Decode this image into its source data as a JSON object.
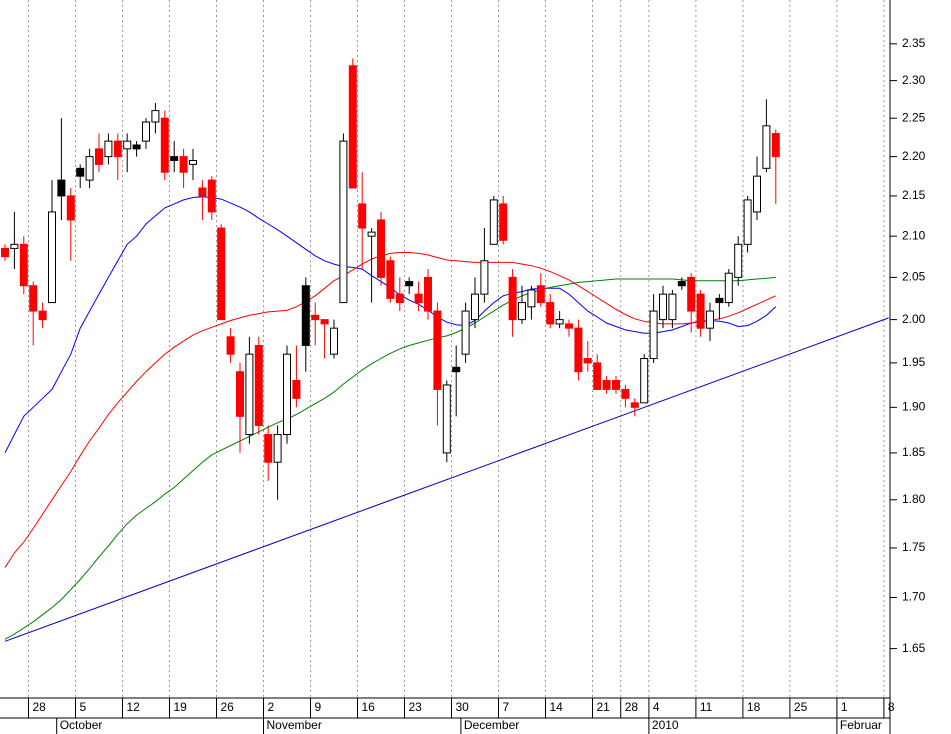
{
  "chart_data": {
    "type": "candlestick",
    "log_scale": true,
    "ylim": [
      1.603,
      2.411
    ],
    "yticks": [
      1.65,
      {
        "value": 1.7,
        "label": "1.70"
      },
      1.75,
      {
        "value": 1.8,
        "label": "1.80"
      },
      1.85,
      {
        "value": 1.9,
        "label": "1.90"
      },
      1.95,
      {
        "value": 2.0,
        "label": "2.00"
      },
      2.05,
      {
        "value": 2.1,
        "label": "2.10"
      },
      2.15,
      {
        "value": 2.2,
        "label": "2.20"
      },
      2.25,
      {
        "value": 2.3,
        "label": "2.30"
      },
      2.35
    ],
    "categories": [
      null,
      null,
      null,
      "28",
      null,
      null,
      null,
      null,
      "5",
      null,
      null,
      null,
      null,
      "12",
      null,
      null,
      null,
      null,
      "19",
      null,
      null,
      null,
      null,
      "26",
      null,
      null,
      null,
      null,
      "2",
      null,
      null,
      null,
      null,
      "9",
      null,
      null,
      null,
      null,
      "16",
      null,
      null,
      null,
      null,
      "23",
      null,
      null,
      null,
      null,
      "30",
      null,
      null,
      null,
      null,
      "7",
      null,
      null,
      null,
      null,
      "14",
      null,
      null,
      null,
      null,
      "21",
      null,
      null,
      "28",
      null,
      null,
      "4",
      null,
      null,
      null,
      null,
      "11",
      null,
      null,
      null,
      null,
      "18",
      null,
      null,
      null,
      null,
      "25",
      null,
      null,
      null,
      null,
      "1",
      null,
      null,
      null,
      null,
      "8"
    ],
    "month_labels": [
      {
        "label": "October",
        "index": 6
      },
      {
        "label": "November",
        "index": 28
      },
      {
        "label": "December",
        "index": 49
      },
      {
        "label": "2010",
        "index": 69
      },
      {
        "label": "Februar",
        "index": 89
      }
    ],
    "open": [
      2.085,
      2.085,
      2.09,
      2.04,
      2.01,
      2.02,
      2.15,
      2.15,
      2.175,
      2.17,
      2.21,
      2.2,
      2.22,
      2.21,
      2.21,
      2.22,
      2.245,
      2.25,
      2.195,
      2.2,
      2.19,
      2.16,
      2.17,
      2.11,
      1.98,
      1.94,
      1.87,
      1.97,
      1.87,
      1.84,
      1.87,
      1.93,
      1.97,
      2.005,
      2.0,
      1.96,
      2.02,
      2.32,
      2.14,
      2.1,
      2.12,
      2.07,
      2.03,
      2.04,
      2.03,
      2.05,
      2.01,
      1.85,
      1.94,
      1.96,
      2.0,
      2.03,
      2.09,
      2.14,
      2.05,
      2.0,
      2.015,
      2.04,
      2.02,
      1.995,
      1.995,
      1.99,
      1.955,
      1.95,
      1.93,
      1.93,
      1.92,
      1.905,
      1.905,
      1.955,
      2.0,
      2.0,
      2.04,
      2.05,
      2.03,
      1.99,
      2.02,
      2.02,
      2.05,
      2.09,
      2.13,
      2.185,
      2.23,
      null,
      null,
      null,
      null,
      null,
      null,
      null,
      null,
      null,
      null,
      null,
      null
    ],
    "high": [
      2.09,
      2.13,
      2.1,
      2.045,
      2.02,
      2.17,
      2.25,
      2.16,
      2.19,
      2.21,
      2.23,
      2.23,
      2.23,
      2.23,
      2.22,
      2.25,
      2.27,
      2.26,
      2.22,
      2.21,
      2.21,
      2.17,
      2.175,
      2.115,
      1.99,
      1.95,
      1.98,
      1.98,
      1.88,
      1.88,
      1.97,
      1.97,
      2.05,
      2.02,
      2.0,
      2.0,
      2.23,
      2.33,
      2.18,
      2.11,
      2.13,
      2.075,
      2.05,
      2.05,
      2.045,
      2.06,
      2.02,
      1.93,
      1.97,
      2.02,
      2.05,
      2.11,
      2.15,
      2.15,
      2.06,
      2.04,
      2.04,
      2.055,
      2.03,
      2.01,
      2.0,
      2.0,
      1.975,
      1.96,
      1.935,
      1.935,
      1.925,
      1.91,
      1.96,
      2.03,
      2.04,
      2.035,
      2.05,
      2.055,
      2.035,
      2.02,
      2.03,
      2.06,
      2.1,
      2.15,
      2.2,
      2.275,
      2.235,
      null,
      null,
      null,
      null,
      null,
      null,
      null,
      null,
      null,
      null,
      null,
      null
    ],
    "low": [
      2.07,
      2.06,
      2.03,
      1.97,
      1.99,
      2.02,
      2.12,
      2.07,
      2.16,
      2.16,
      2.18,
      2.19,
      2.17,
      2.18,
      2.2,
      2.21,
      2.23,
      2.17,
      2.18,
      2.16,
      2.17,
      2.12,
      2.12,
      2.0,
      1.95,
      1.85,
      1.86,
      1.87,
      1.82,
      1.8,
      1.86,
      1.9,
      1.94,
      1.97,
      1.955,
      1.955,
      2.02,
      2.16,
      2.06,
      2.02,
      2.04,
      2.02,
      2.01,
      2.03,
      2.01,
      2.0,
      1.88,
      1.84,
      1.89,
      1.95,
      1.99,
      2.02,
      2.09,
      2.09,
      1.98,
      1.995,
      2.0,
      2.015,
      1.99,
      1.99,
      1.98,
      1.93,
      1.94,
      1.92,
      1.915,
      1.915,
      1.9,
      1.89,
      1.905,
      1.95,
      1.99,
      1.99,
      2.035,
      1.985,
      1.98,
      1.975,
      2.0,
      2.015,
      2.04,
      2.08,
      2.12,
      2.18,
      2.14,
      null,
      null,
      null,
      null,
      null,
      null,
      null,
      null,
      null,
      null,
      null,
      null
    ],
    "close": [
      2.075,
      2.09,
      2.04,
      2.01,
      2.0,
      2.13,
      2.17,
      2.12,
      2.185,
      2.2,
      2.19,
      2.22,
      2.2,
      2.22,
      2.215,
      2.245,
      2.26,
      2.18,
      2.2,
      2.18,
      2.195,
      2.15,
      2.13,
      2.0,
      1.96,
      1.89,
      1.96,
      1.88,
      1.84,
      1.87,
      1.96,
      1.91,
      2.04,
      2.0,
      1.995,
      1.99,
      2.22,
      2.16,
      2.11,
      2.105,
      2.05,
      2.025,
      2.02,
      2.045,
      2.02,
      2.01,
      1.92,
      1.925,
      1.945,
      2.01,
      2.03,
      2.07,
      2.145,
      2.095,
      2.0,
      2.02,
      2.035,
      2.02,
      1.995,
      2.0,
      1.99,
      1.94,
      1.95,
      1.92,
      1.92,
      1.92,
      1.91,
      1.9,
      1.955,
      2.01,
      2.03,
      2.03,
      2.045,
      2.01,
      1.99,
      2.01,
      2.025,
      2.055,
      2.09,
      2.145,
      2.175,
      2.24,
      2.2,
      null,
      null,
      null,
      null,
      null,
      null,
      null,
      null,
      null,
      null,
      null,
      null
    ],
    "candle_colors": [
      "#ff0000",
      "#ffffff",
      "#ff0000",
      "#ff0000",
      "#ff0000",
      "#ffffff",
      "#000000",
      "#ff0000",
      "#000000",
      "#ffffff",
      "#ff0000",
      "#ffffff",
      "#ff0000",
      "#ffffff",
      "#000000",
      "#ffffff",
      "#ffffff",
      "#ff0000",
      "#000000",
      "#ff0000",
      "#ffffff",
      "#ff0000",
      "#ff0000",
      "#ff0000",
      "#ff0000",
      "#ff0000",
      "#ffffff",
      "#ff0000",
      "#ff0000",
      "#ffffff",
      "#ffffff",
      "#ff0000",
      "#000000",
      "#ff0000",
      "#ff0000",
      "#ffffff",
      "#ffffff",
      "#ff0000",
      "#ff0000",
      "#ffffff",
      "#ff0000",
      "#ff0000",
      "#ff0000",
      "#000000",
      "#ff0000",
      "#ff0000",
      "#ff0000",
      "#ffffff",
      "#000000",
      "#ffffff",
      "#ffffff",
      "#ffffff",
      "#ffffff",
      "#ff0000",
      "#ff0000",
      "#ffffff",
      "#ffffff",
      "#ff0000",
      "#ff0000",
      "#ffffff",
      "#ff0000",
      "#ff0000",
      "#ff0000",
      "#ff0000",
      "#ff0000",
      "#ff0000",
      "#ff0000",
      "#ff0000",
      "#ffffff",
      "#ffffff",
      "#ffffff",
      "#ffffff",
      "#000000",
      "#ff0000",
      "#ff0000",
      "#ffffff",
      "#000000",
      "#ffffff",
      "#ffffff",
      "#ffffff",
      "#ffffff",
      "#ffffff",
      "#ff0000",
      null,
      null,
      null,
      null,
      null,
      null,
      null,
      null,
      null,
      null,
      null,
      null
    ],
    "lines": [
      {
        "color": "#0000ff",
        "values": [
          1.85,
          1.87,
          1.89,
          1.9,
          1.91,
          1.92,
          1.94,
          1.96,
          1.99,
          2.01,
          2.03,
          2.05,
          2.07,
          2.09,
          2.1,
          2.115,
          2.125,
          2.135,
          2.14,
          2.145,
          2.148,
          2.149,
          2.148,
          2.146,
          2.141,
          2.136,
          2.13,
          2.122,
          2.115,
          2.108,
          2.1,
          2.092,
          2.084,
          2.076,
          2.07,
          2.066,
          2.063,
          2.062,
          2.06,
          2.052,
          2.045,
          2.038,
          2.029,
          2.023,
          2.018,
          2.011,
          2.003,
          1.997,
          1.994,
          1.993,
          1.999,
          2.01,
          2.02,
          2.028,
          2.031,
          2.033,
          2.036,
          2.037,
          2.037,
          2.037,
          2.03,
          2.02,
          2.01,
          2.003,
          1.996,
          1.992,
          1.988,
          1.986,
          1.984,
          1.984,
          1.986,
          1.988,
          1.992,
          1.996,
          1.998,
          1.999,
          1.998,
          1.996,
          1.992,
          1.993,
          1.998,
          2.005,
          2.015,
          null,
          null,
          null,
          null,
          null,
          null,
          null,
          null,
          null,
          null,
          null,
          null
        ]
      },
      {
        "color": "#ff0000",
        "values": [
          1.73,
          1.745,
          1.756,
          1.77,
          1.785,
          1.8,
          1.815,
          1.83,
          1.847,
          1.863,
          1.877,
          1.892,
          1.905,
          1.917,
          1.929,
          1.94,
          1.95,
          1.96,
          1.968,
          1.975,
          1.982,
          1.987,
          1.991,
          1.995,
          1.999,
          2.002,
          2.005,
          2.007,
          2.009,
          2.01,
          2.011,
          2.015,
          2.021,
          2.028,
          2.037,
          2.046,
          2.052,
          2.059,
          2.066,
          2.072,
          2.076,
          2.079,
          2.08,
          2.08,
          2.079,
          2.077,
          2.074,
          2.071,
          2.07,
          2.069,
          2.068,
          2.068,
          2.068,
          2.068,
          2.068,
          2.066,
          2.064,
          2.061,
          2.057,
          2.052,
          2.047,
          2.04,
          2.033,
          2.026,
          2.019,
          2.012,
          2.006,
          2.001,
          1.998,
          1.996,
          1.995,
          1.995,
          1.995,
          1.996,
          1.997,
          1.999,
          2.001,
          2.004,
          2.008,
          2.013,
          2.018,
          2.023,
          2.028,
          null,
          null,
          null,
          null,
          null,
          null,
          null,
          null,
          null,
          null,
          null,
          null
        ]
      },
      {
        "color": "#008000",
        "values": [
          1.659,
          1.664,
          1.67,
          1.676,
          1.683,
          1.69,
          1.698,
          1.708,
          1.718,
          1.729,
          1.741,
          1.752,
          1.764,
          1.775,
          1.784,
          1.791,
          1.798,
          1.806,
          1.813,
          1.822,
          1.831,
          1.84,
          1.848,
          1.853,
          1.858,
          1.863,
          1.868,
          1.873,
          1.878,
          1.883,
          1.887,
          1.892,
          1.898,
          1.904,
          1.91,
          1.917,
          1.926,
          1.934,
          1.942,
          1.949,
          1.955,
          1.961,
          1.966,
          1.97,
          1.973,
          1.976,
          1.979,
          1.981,
          1.985,
          1.99,
          1.996,
          2.003,
          2.01,
          2.017,
          2.023,
          2.028,
          2.032,
          2.035,
          2.038,
          2.04,
          2.042,
          2.044,
          2.045,
          2.046,
          2.047,
          2.048,
          2.048,
          2.048,
          2.048,
          2.048,
          2.048,
          2.048,
          2.047,
          2.046,
          2.046,
          2.046,
          2.046,
          2.046,
          2.046,
          2.047,
          2.048,
          2.049,
          2.05,
          null,
          null,
          null,
          null,
          null,
          null,
          null,
          null,
          null,
          null,
          null,
          null
        ]
      }
    ],
    "trendlines": [
      {
        "color": "#0000cc",
        "from_index": 0,
        "from_value": 1.657,
        "to_index": 94,
        "to_value": 2.002
      }
    ]
  }
}
